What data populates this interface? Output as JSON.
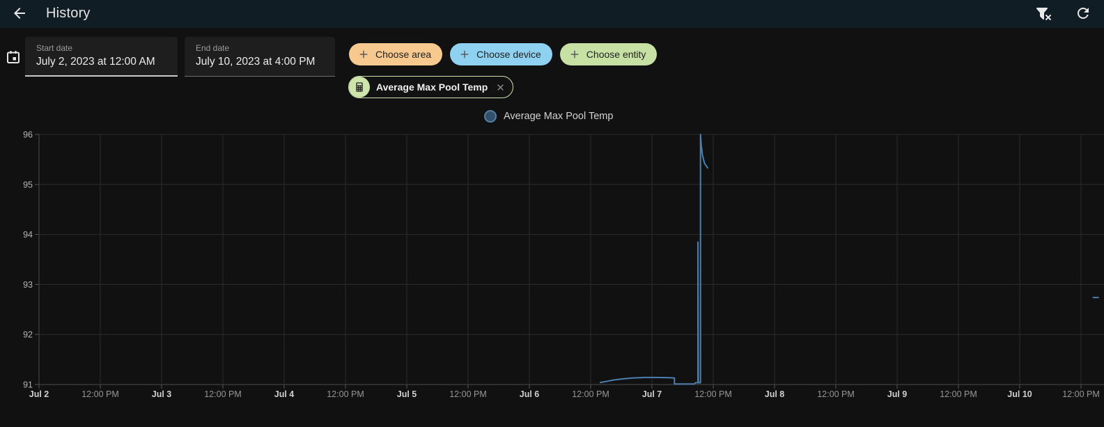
{
  "header": {
    "title": "History",
    "back_icon": "arrow-left-icon",
    "filter_icon": "filter-remove-icon",
    "refresh_icon": "refresh-icon"
  },
  "filters": {
    "calendar_icon": "calendar-icon",
    "start_date": {
      "label": "Start date",
      "value": "July 2, 2023 at 12:00 AM"
    },
    "end_date": {
      "label": "End date",
      "value": "July 10, 2023 at 4:00 PM"
    },
    "chips": [
      {
        "label": "Choose area",
        "color": "#f8c98e"
      },
      {
        "label": "Choose device",
        "color": "#8ed1f0"
      },
      {
        "label": "Choose entity",
        "color": "#c7e1a5"
      }
    ],
    "entity_chip": {
      "label": "Average Max Pool Temp",
      "avatar_icon": "calculator-icon",
      "color": "#cfe3ad",
      "close_icon": "close-icon"
    }
  },
  "legend": {
    "label": "Average Max Pool Temp",
    "marker_fill": "#31506b",
    "marker_border": "#56809f"
  },
  "chart_data": {
    "type": "line",
    "title": "",
    "xlabel": "",
    "ylabel": "",
    "x_unit": "hours since Jul 2, 2023 12:00 AM",
    "ylim": [
      91,
      96
    ],
    "y_ticks": [
      91,
      92,
      93,
      94,
      95,
      96
    ],
    "grid": true,
    "legend_position": "top-center",
    "x_ticks": [
      {
        "hours": 0,
        "label": "Jul 2",
        "major": true
      },
      {
        "hours": 12,
        "label": "12:00 PM",
        "major": false
      },
      {
        "hours": 24,
        "label": "Jul 3",
        "major": true
      },
      {
        "hours": 36,
        "label": "12:00 PM",
        "major": false
      },
      {
        "hours": 48,
        "label": "Jul 4",
        "major": true
      },
      {
        "hours": 60,
        "label": "12:00 PM",
        "major": false
      },
      {
        "hours": 72,
        "label": "Jul 5",
        "major": true
      },
      {
        "hours": 84,
        "label": "12:00 PM",
        "major": false
      },
      {
        "hours": 96,
        "label": "Jul 6",
        "major": true
      },
      {
        "hours": 108,
        "label": "12:00 PM",
        "major": false
      },
      {
        "hours": 120,
        "label": "Jul 7",
        "major": true
      },
      {
        "hours": 132,
        "label": "12:00 PM",
        "major": false
      },
      {
        "hours": 144,
        "label": "Jul 8",
        "major": true
      },
      {
        "hours": 156,
        "label": "12:00 PM",
        "major": false
      },
      {
        "hours": 168,
        "label": "Jul 9",
        "major": true
      },
      {
        "hours": 180,
        "label": "12:00 PM",
        "major": false
      },
      {
        "hours": 192,
        "label": "Jul 10",
        "major": true
      },
      {
        "hours": 204,
        "label": "12:00 PM",
        "major": false
      }
    ],
    "series": [
      {
        "name": "Average Max Pool Temp",
        "color": "#4d7fae",
        "segments": [
          [
            [
              109.9,
              91.04
            ],
            [
              111.0,
              91.06
            ],
            [
              112.5,
              91.09
            ],
            [
              114.0,
              91.11
            ],
            [
              116.0,
              91.13
            ],
            [
              118.5,
              91.14
            ],
            [
              121.0,
              91.14
            ],
            [
              123.5,
              91.135
            ],
            [
              124.4,
              91.13
            ],
            [
              124.4,
              91.01
            ],
            [
              128.3,
              91.01
            ],
            [
              128.5,
              91.035
            ],
            [
              129.0,
              91.035
            ],
            [
              129.0,
              93.85
            ],
            [
              129.08,
              91.035
            ],
            [
              129.5,
              91.035
            ],
            [
              129.5,
              96.0
            ],
            [
              129.65,
              95.78
            ],
            [
              129.9,
              95.58
            ],
            [
              130.3,
              95.42
            ],
            [
              130.9,
              95.33
            ]
          ],
          [
            [
              206.4,
              92.74
            ],
            [
              207.4,
              92.74
            ]
          ]
        ]
      }
    ]
  }
}
